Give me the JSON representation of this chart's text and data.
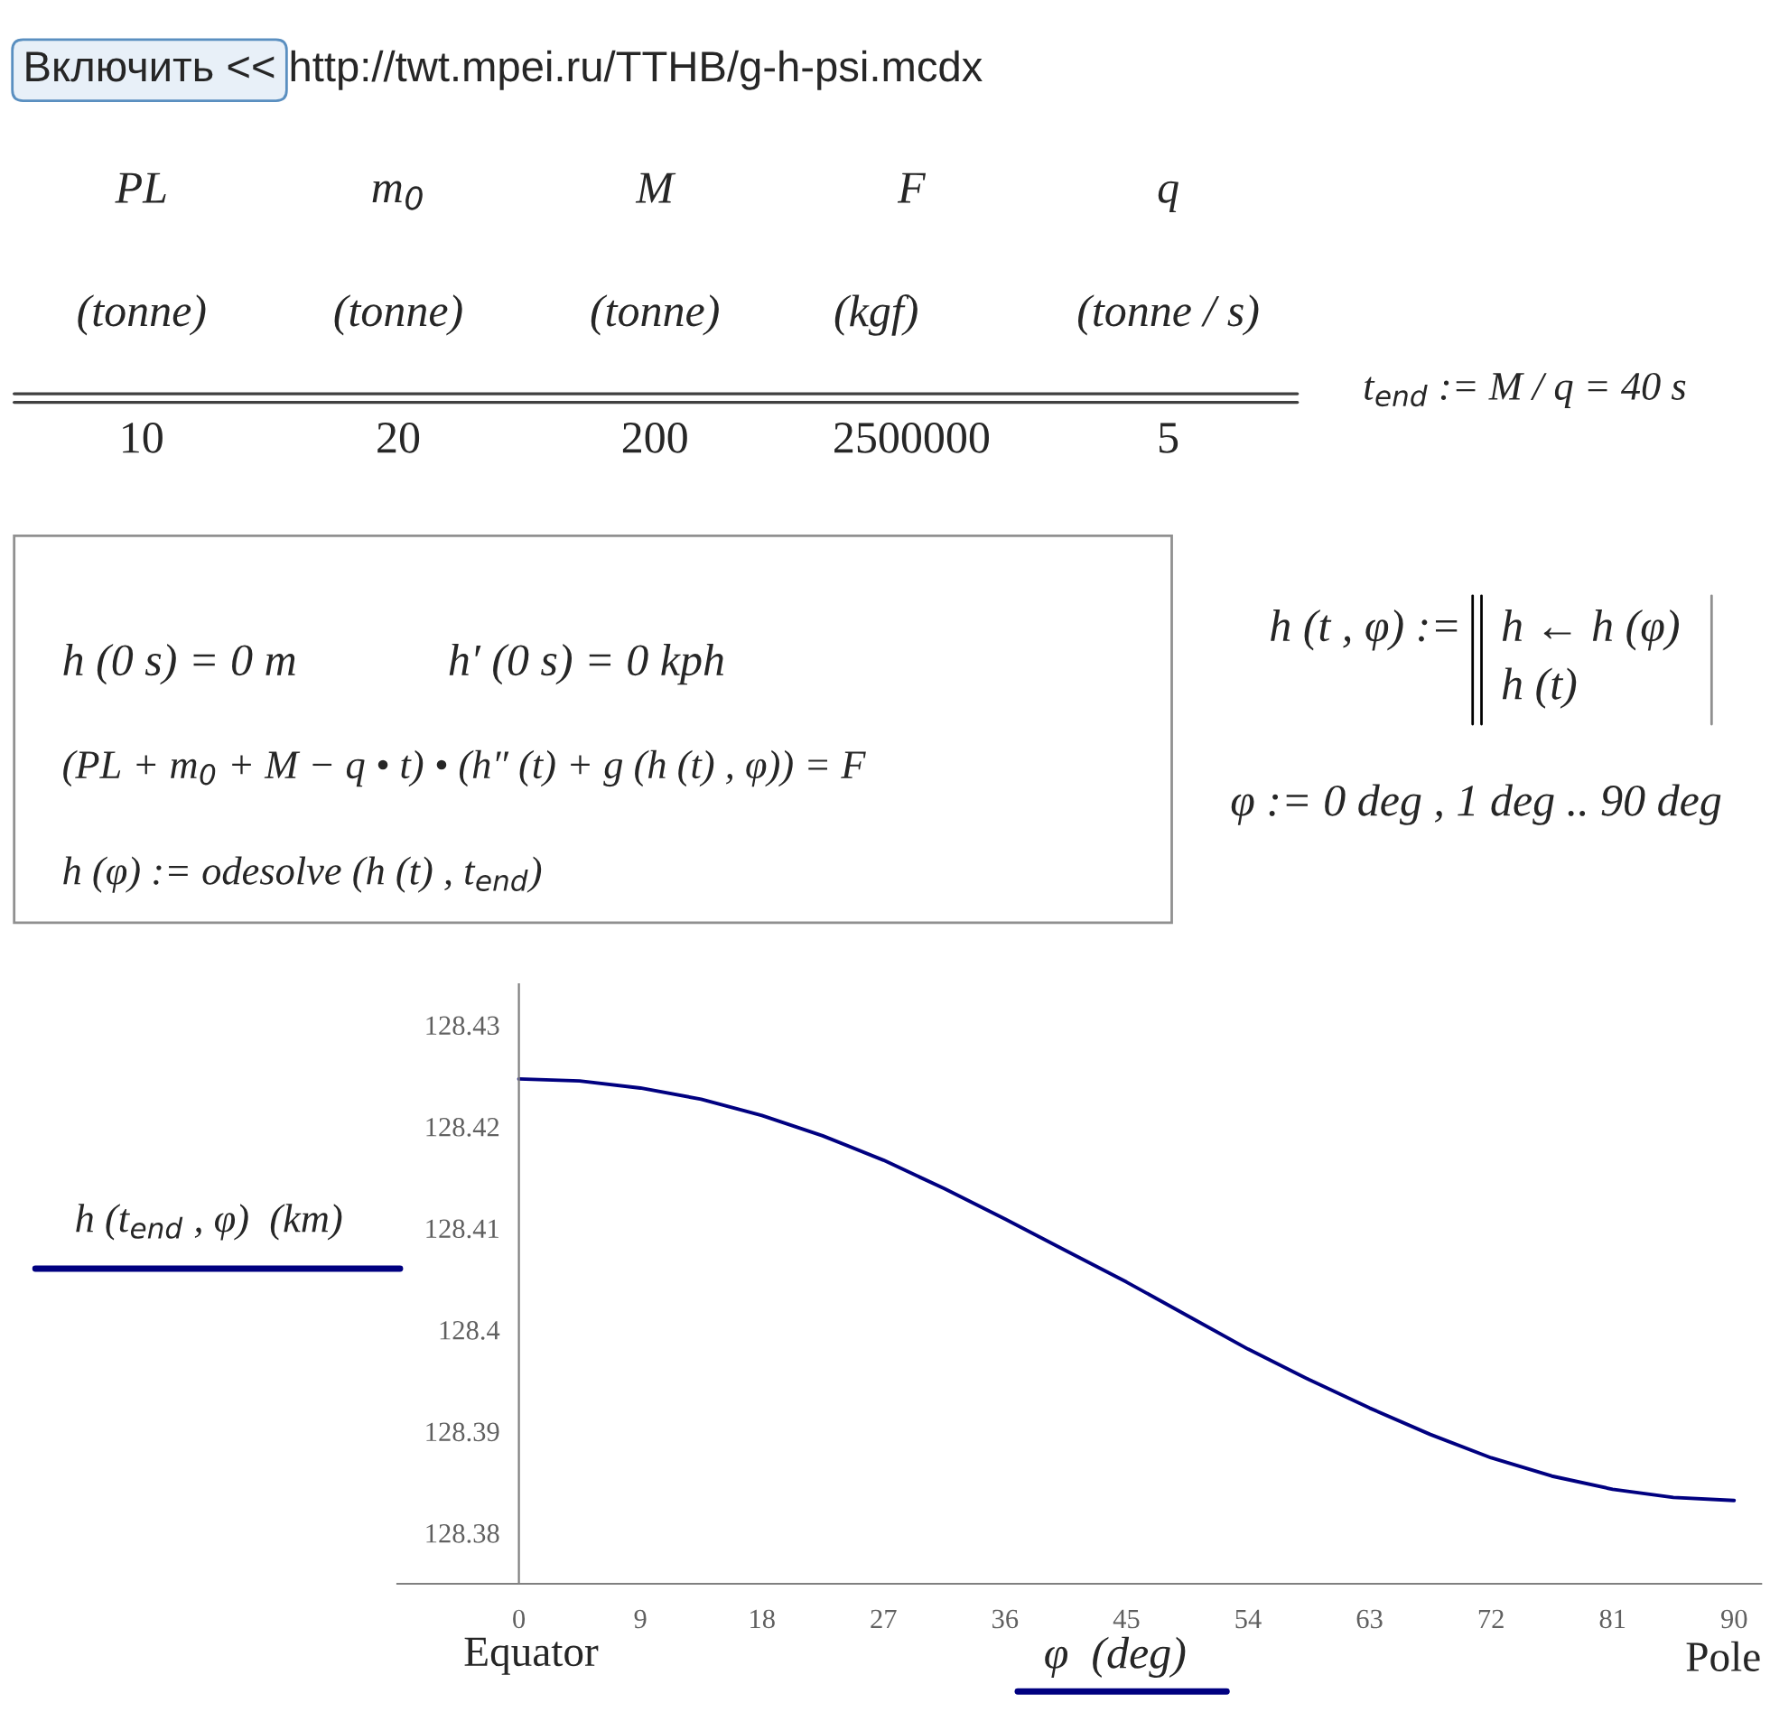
{
  "chart_data": {
    "type": "line",
    "xlabel": "φ  (deg)",
    "ylabel": "h (t$_{end}$ , φ)  (km)",
    "x": [
      0,
      4.5,
      9,
      13.5,
      18,
      22.5,
      27,
      31.5,
      36,
      40.5,
      45,
      49.5,
      54,
      58.5,
      63,
      67.5,
      72,
      76.5,
      81,
      85.5,
      90
    ],
    "series": [
      {
        "color": "#000080",
        "values": [
          128.4247,
          128.4245,
          128.4238,
          128.4227,
          128.4211,
          128.4191,
          128.4167,
          128.4139,
          128.4109,
          128.4078,
          128.4047,
          128.4014,
          128.3981,
          128.3951,
          128.3923,
          128.3897,
          128.3874,
          128.3856,
          128.3843,
          128.3835,
          128.3832
        ]
      }
    ],
    "xlim": [
      -9,
      92
    ],
    "ylim": [
      128.375,
      128.434
    ],
    "xticks": [
      0,
      9,
      18,
      27,
      36,
      45,
      54,
      63,
      72,
      81,
      90
    ],
    "yticks": [
      128.38,
      128.39,
      {
        "value": 128.4,
        "label": "128.4"
      },
      128.41,
      128.42,
      128.43
    ],
    "grid": false,
    "legend": false,
    "marker": "none",
    "line_style": "solid",
    "annotations": [
      "Equator",
      "Pole",
      "Включить <<",
      "http://twt.mpei.ru/TTHB/g-h-psi.mcdx",
      "PL",
      "m$_{0}$",
      "M",
      "F",
      "q",
      "(tonne)",
      "(tonne)",
      "(tonne)",
      "(kgf)",
      "(tonne / s)",
      "10",
      "20",
      "200",
      "2500000",
      "5",
      "t$_{end}$ := M / q = 40 s",
      "h (0 s) = 0 m",
      "h′ (0 s) = 0 kph",
      "(PL + m$_{0}$ + M − q • t) • (h″ (t) + g (h (t) , φ)) = F",
      "h (φ) := odesolve (h (t) , t$_{end}$)",
      "h (t , φ) :=",
      "h ← h (φ)",
      "h (t)",
      "φ := 0 deg , 1 deg .. 90 deg"
    ]
  }
}
